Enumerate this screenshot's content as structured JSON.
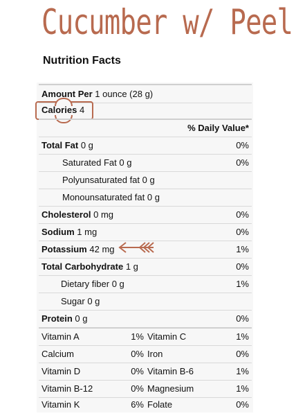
{
  "title": "Cucumber w/ Peel",
  "heading": "Nutrition Facts",
  "amount_per_label": "Amount Per",
  "amount_per_value": "1 ounce (28 g)",
  "calories_label": "Calories",
  "calories_value": "4",
  "daily_value_header": "% Daily Value*",
  "nutrients": [
    {
      "label": "Total Fat",
      "amount": "0 g",
      "pct": "0%"
    },
    {
      "label": "Saturated Fat",
      "amount": "0 g",
      "pct": "0%"
    },
    {
      "label": "Polyunsaturated fat",
      "amount": "0 g",
      "pct": ""
    },
    {
      "label": "Monounsaturated fat",
      "amount": "0 g",
      "pct": ""
    },
    {
      "label": "Cholesterol",
      "amount": "0 mg",
      "pct": "0%"
    },
    {
      "label": "Sodium",
      "amount": "1 mg",
      "pct": "0%"
    },
    {
      "label": "Potassium",
      "amount": "42 mg",
      "pct": "1%"
    },
    {
      "label": "Total Carbohydrate",
      "amount": "1 g",
      "pct": "0%"
    },
    {
      "label": "Dietary fiber",
      "amount": "0 g",
      "pct": "1%"
    },
    {
      "label": "Sugar",
      "amount": "0 g",
      "pct": ""
    },
    {
      "label": "Protein",
      "amount": "0 g",
      "pct": "0%"
    }
  ],
  "vitamins": [
    {
      "left_name": "Vitamin A",
      "left_pct": "1%",
      "right_name": "Vitamin C",
      "right_pct": "1%"
    },
    {
      "left_name": "Calcium",
      "left_pct": "0%",
      "right_name": "Iron",
      "right_pct": "0%"
    },
    {
      "left_name": "Vitamin D",
      "left_pct": "0%",
      "right_name": "Vitamin B-6",
      "right_pct": "1%"
    },
    {
      "left_name": "Vitamin B-12",
      "left_pct": "0%",
      "right_name": "Magnesium",
      "right_pct": "1%"
    },
    {
      "left_name": "Vitamin K",
      "left_pct": "6%",
      "right_name": "Folate",
      "right_pct": "0%"
    }
  ],
  "accent_color": "#b86a4f",
  "highlight_icon": "arrow-left-icon"
}
